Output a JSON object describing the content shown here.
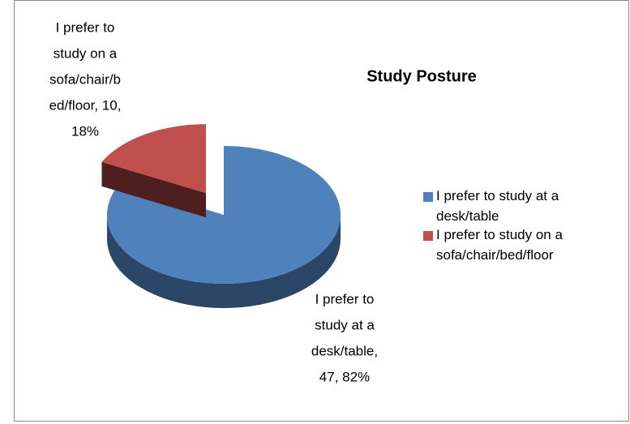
{
  "chart_data": {
    "type": "pie",
    "title": "Study Posture",
    "categories": [
      "I prefer to study at a desk/table",
      "I prefer to study on a sofa/chair/bed/floor"
    ],
    "values": [
      47,
      10
    ],
    "value_labels": [
      [
        "I prefer to",
        "study at a",
        "desk/table,",
        "47, 82%"
      ],
      [
        "I prefer to",
        "study on a",
        "sofa/chair/b",
        "ed/floor, 10,",
        "18%"
      ]
    ],
    "colors": [
      "#4f81bd",
      "#c0504d"
    ],
    "legend": "right"
  }
}
